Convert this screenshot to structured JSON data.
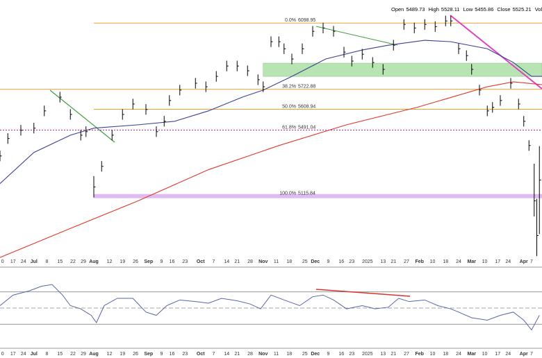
{
  "chart_data": [
    {
      "type": "ohlc",
      "header": [
        {
          "label": "Open",
          "value": 5489.73
        },
        {
          "label": "High",
          "value": 5528.11
        },
        {
          "label": "Low",
          "value": 5455.86
        },
        {
          "label": "Close",
          "value": 5525.21
        },
        {
          "label": "Volum"
        }
      ],
      "xlim": [
        0,
        208
      ],
      "ylim": [
        4740,
        6230
      ],
      "xticks": [
        {
          "value": 1,
          "label": "0"
        },
        {
          "value": 5,
          "label": "17"
        },
        {
          "value": 9,
          "label": "24"
        },
        {
          "value": 13,
          "label": "Jul"
        },
        {
          "value": 18,
          "label": "8"
        },
        {
          "value": 23,
          "label": "15"
        },
        {
          "value": 28,
          "label": "22"
        },
        {
          "value": 32,
          "label": "29"
        },
        {
          "value": 36,
          "label": "Aug"
        },
        {
          "value": 42,
          "label": "12"
        },
        {
          "value": 47,
          "label": "19"
        },
        {
          "value": 52,
          "label": "26"
        },
        {
          "value": 57,
          "label": "Sep"
        },
        {
          "value": 62,
          "label": "9"
        },
        {
          "value": 66,
          "label": "16"
        },
        {
          "value": 71,
          "label": "23"
        },
        {
          "value": 77,
          "label": "Oct"
        },
        {
          "value": 82,
          "label": "7"
        },
        {
          "value": 87,
          "label": "14"
        },
        {
          "value": 91,
          "label": "21"
        },
        {
          "value": 96,
          "label": "28"
        },
        {
          "value": 101,
          "label": "Nov"
        },
        {
          "value": 106,
          "label": "11"
        },
        {
          "value": 111,
          "label": "18"
        },
        {
          "value": 117,
          "label": "25"
        },
        {
          "value": 121,
          "label": "Dec"
        },
        {
          "value": 126,
          "label": "9"
        },
        {
          "value": 131,
          "label": "16"
        },
        {
          "value": 135,
          "label": "23"
        },
        {
          "value": 141,
          "label": "2025"
        },
        {
          "value": 147,
          "label": "13"
        },
        {
          "value": 151,
          "label": "21"
        },
        {
          "value": 156,
          "label": "27"
        },
        {
          "value": 161,
          "label": "Feb"
        },
        {
          "value": 166,
          "label": "10"
        },
        {
          "value": 171,
          "label": "18"
        },
        {
          "value": 176,
          "label": "24"
        },
        {
          "value": 181,
          "label": "Mar"
        },
        {
          "value": 186,
          "label": "10"
        },
        {
          "value": 191,
          "label": "17"
        },
        {
          "value": 195,
          "label": "24"
        },
        {
          "value": 201,
          "label": "Apr"
        },
        {
          "value": 204,
          "label": "7"
        }
      ],
      "x": [
        0,
        3,
        8,
        13,
        17,
        23,
        27,
        31,
        33,
        36,
        39,
        43,
        47,
        51,
        56,
        60,
        63,
        65,
        69,
        75,
        79,
        83,
        87,
        91,
        95,
        99,
        101,
        104,
        107,
        109,
        112,
        116,
        120,
        124,
        128,
        132,
        135,
        139,
        143,
        147,
        151,
        155,
        159,
        163,
        167,
        171,
        173,
        176,
        179,
        181,
        184,
        187,
        189,
        192,
        196,
        199,
        201,
        203,
        205,
        206,
        207
      ],
      "high": [
        5374,
        5473,
        5520,
        5532,
        5630,
        5708,
        5610,
        5492,
        5512,
        5230,
        5315,
        5492,
        5610,
        5669,
        5638,
        5512,
        5571,
        5689,
        5748,
        5787,
        5767,
        5826,
        5885,
        5885,
        5858,
        5807,
        5767,
        6023,
        6023,
        5983,
        5925,
        5983,
        6082,
        6101,
        6082,
        5964,
        5913,
        5952,
        5905,
        5866,
        6003,
        6121,
        6101,
        6121,
        6109,
        6141,
        6141,
        5983,
        5944,
        5866,
        5748,
        5630,
        5650,
        5689,
        5787,
        5669,
        5571,
        5433,
        5300,
        5100,
        5400
      ],
      "low": [
        5314,
        5413,
        5460,
        5472,
        5570,
        5648,
        5550,
        5432,
        5452,
        5108,
        5255,
        5432,
        5550,
        5609,
        5578,
        5452,
        5511,
        5629,
        5688,
        5727,
        5707,
        5766,
        5825,
        5825,
        5798,
        5747,
        5707,
        5963,
        5963,
        5923,
        5865,
        5923,
        6022,
        6041,
        6022,
        5904,
        5853,
        5892,
        5845,
        5806,
        5943,
        6061,
        6041,
        6061,
        6049,
        6081,
        6081,
        5923,
        5884,
        5806,
        5688,
        5570,
        5590,
        5629,
        5727,
        5609,
        5511,
        5373,
        5000,
        4775,
        4900
      ],
      "close": [
        5344,
        5443,
        5490,
        5502,
        5600,
        5678,
        5580,
        5462,
        5482,
        5168,
        5285,
        5462,
        5580,
        5639,
        5608,
        5482,
        5541,
        5659,
        5718,
        5757,
        5737,
        5796,
        5855,
        5855,
        5828,
        5777,
        5737,
        5993,
        5993,
        5953,
        5895,
        5953,
        6052,
        6071,
        6052,
        5934,
        5883,
        5922,
        5875,
        5836,
        5973,
        6091,
        6071,
        6091,
        6079,
        6111,
        6111,
        5953,
        5914,
        5836,
        5718,
        5600,
        5620,
        5659,
        5757,
        5639,
        5541,
        5403,
        5089,
        4892,
        5207
      ],
      "color": "#000000",
      "moving_averages": [
        {
          "color": "#3b3f94",
          "x": [
            0,
            13,
            27,
            36,
            53,
            67,
            80,
            93,
            101,
            112,
            125,
            139,
            149,
            163,
            173,
            187,
            197,
            204,
            208
          ],
          "values": [
            5187,
            5364,
            5462,
            5502,
            5521,
            5541,
            5600,
            5678,
            5718,
            5796,
            5895,
            5946,
            5973,
            6001,
            5993,
            5953,
            5875,
            5796,
            5796
          ]
        },
        {
          "color": "#e0392b",
          "x": [
            0,
            27,
            53,
            80,
            107,
            133,
            160,
            187,
            197,
            208
          ],
          "values": [
            4767,
            4932,
            5089,
            5266,
            5403,
            5521,
            5620,
            5737,
            5765,
            5749
          ]
        }
      ],
      "fib_levels": [
        {
          "label": "0.0%",
          "value": 6098.95,
          "color": "#f0a030"
        },
        {
          "label": "38.2%",
          "value": 5722.88,
          "color": "#f0a030"
        },
        {
          "label": "50.0%",
          "value": 5608.94,
          "color": "#f0a030"
        },
        {
          "label": "61.8%",
          "value": 5491.04,
          "color": "#c0209c"
        },
        {
          "label": "100.0%",
          "value": 5115.84,
          "color": "#c88ee8"
        }
      ],
      "zone": {
        "low": 5796,
        "high": 5871,
        "color": "#a6dea0"
      }
    },
    {
      "type": "line",
      "xlim": [
        0,
        208
      ],
      "ylim": [
        2,
        98
      ],
      "levels": [
        30,
        50,
        70
      ],
      "color": "#5865a8",
      "x": [
        0,
        5,
        11,
        16,
        20,
        24,
        27,
        31,
        35,
        37,
        40,
        45,
        51,
        56,
        60,
        64,
        69,
        75,
        80,
        85,
        91,
        96,
        100,
        104,
        109,
        115,
        120,
        124,
        128,
        133,
        139,
        144,
        149,
        153,
        157,
        163,
        168,
        173,
        176,
        181,
        187,
        192,
        197,
        201,
        204,
        207
      ],
      "values": [
        53,
        66,
        71,
        77,
        79,
        66,
        53,
        49,
        41,
        32,
        53,
        62,
        62,
        45,
        41,
        53,
        60,
        58,
        56,
        62,
        59,
        55,
        49,
        66,
        60,
        53,
        64,
        66,
        60,
        49,
        53,
        49,
        51,
        62,
        58,
        60,
        53,
        49,
        45,
        38,
        35,
        41,
        45,
        35,
        23,
        41
      ]
    }
  ]
}
